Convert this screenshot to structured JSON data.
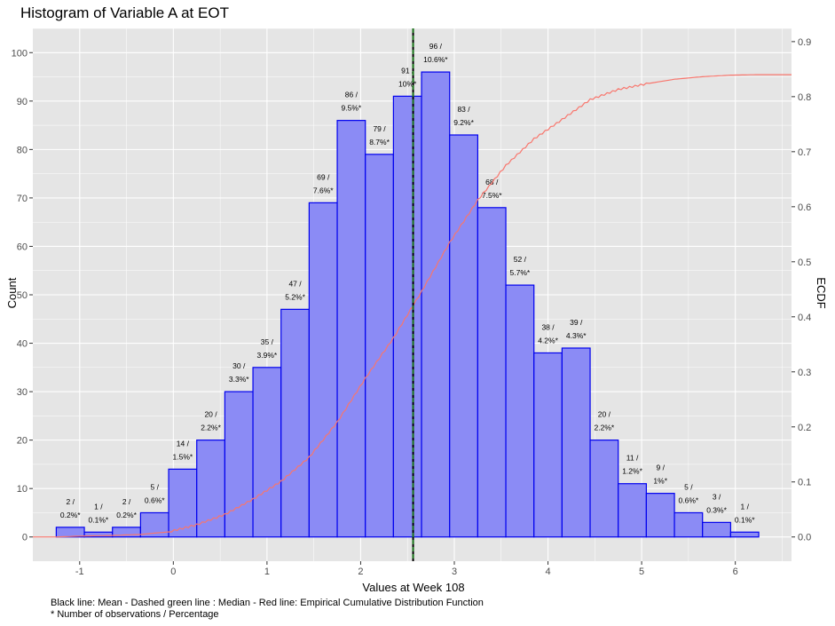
{
  "chart_data": {
    "type": "bar",
    "title": "Histogram of Variable A at EOT",
    "xlabel": "Values at Week 108",
    "ylabel": "Count",
    "y2label": "ECDF",
    "xlim": [
      -1.5,
      6.6
    ],
    "ylim": [
      -5,
      105
    ],
    "y2lim": [
      -0.044,
      0.924
    ],
    "xticks": [
      -1,
      0,
      1,
      2,
      3,
      4,
      5,
      6
    ],
    "yticks": [
      0,
      10,
      20,
      30,
      40,
      50,
      60,
      70,
      80,
      90,
      100
    ],
    "y2ticks": [
      "0.0",
      "0.1",
      "0.2",
      "0.3",
      "0.4",
      "0.5",
      "0.6",
      "0.7",
      "0.8",
      "0.9"
    ],
    "grid": true,
    "bin_width": 0.3,
    "bins": [
      {
        "center": -1.1,
        "count": 2,
        "label1": "2 /",
        "label2": "0.2%*"
      },
      {
        "center": -0.8,
        "count": 1,
        "label1": "1 /",
        "label2": "0.1%*"
      },
      {
        "center": -0.5,
        "count": 2,
        "label1": "2 /",
        "label2": "0.2%*"
      },
      {
        "center": -0.2,
        "count": 5,
        "label1": "5 /",
        "label2": "0.6%*"
      },
      {
        "center": 0.1,
        "count": 14,
        "label1": "14 /",
        "label2": "1.5%*"
      },
      {
        "center": 0.4,
        "count": 20,
        "label1": "20 /",
        "label2": "2.2%*"
      },
      {
        "center": 0.7,
        "count": 30,
        "label1": "30 /",
        "label2": "3.3%*"
      },
      {
        "center": 1.0,
        "count": 35,
        "label1": "35 /",
        "label2": "3.9%*"
      },
      {
        "center": 1.3,
        "count": 47,
        "label1": "47 /",
        "label2": "5.2%*"
      },
      {
        "center": 1.6,
        "count": 69,
        "label1": "69 /",
        "label2": "7.6%*"
      },
      {
        "center": 1.9,
        "count": 86,
        "label1": "86 /",
        "label2": "9.5%*"
      },
      {
        "center": 2.2,
        "count": 79,
        "label1": "79 /",
        "label2": "8.7%*"
      },
      {
        "center": 2.5,
        "count": 91,
        "label1": "91 /",
        "label2": "10%*"
      },
      {
        "center": 2.8,
        "count": 96,
        "label1": "96 /",
        "label2": "10.6%*"
      },
      {
        "center": 3.1,
        "count": 83,
        "label1": "83 /",
        "label2": "9.2%*"
      },
      {
        "center": 3.4,
        "count": 68,
        "label1": "68 /",
        "label2": "7.5%*"
      },
      {
        "center": 3.7,
        "count": 52,
        "label1": "52 /",
        "label2": "5.7%*"
      },
      {
        "center": 4.0,
        "count": 38,
        "label1": "38 /",
        "label2": "4.2%*"
      },
      {
        "center": 4.3,
        "count": 39,
        "label1": "39 /",
        "label2": "4.3%*"
      },
      {
        "center": 4.6,
        "count": 20,
        "label1": "20 /",
        "label2": "2.2%*"
      },
      {
        "center": 4.9,
        "count": 11,
        "label1": "11 /",
        "label2": "1.2%*"
      },
      {
        "center": 5.2,
        "count": 9,
        "label1": "9 /",
        "label2": "1%*"
      },
      {
        "center": 5.5,
        "count": 5,
        "label1": "5 /",
        "label2": "0.6%*"
      },
      {
        "center": 5.8,
        "count": 3,
        "label1": "3 /",
        "label2": "0.3%*"
      },
      {
        "center": 6.1,
        "count": 1,
        "label1": "1 /",
        "label2": "0.1%*"
      }
    ],
    "mean": 2.56,
    "median": 2.56,
    "ecdf_max": 0.84,
    "colors": {
      "bar_fill": "#8b8bf5",
      "bar_stroke": "#0000ee",
      "panel": "#e5e5e5",
      "grid": "#ffffff",
      "mean_line": "#000000",
      "median_line": "#228b22",
      "ecdf_line": "#f8766d"
    }
  },
  "captions": {
    "line1": "Black line: Mean - Dashed green line : Median - Red line: Empirical Cumulative Distribution Function",
    "line2": "* Number of observations / Percentage"
  }
}
